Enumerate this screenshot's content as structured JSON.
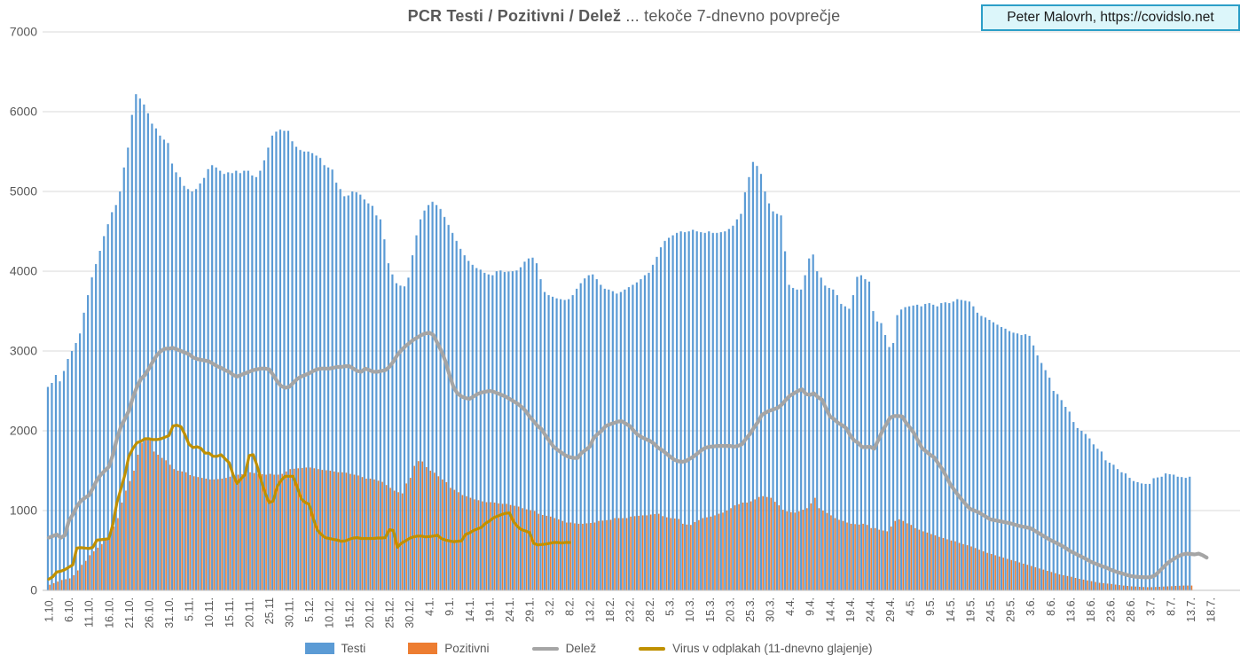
{
  "title": {
    "bold": "PCR Testi / Pozitivni / Delež",
    "regular": " ... tekoče 7-dnevno povprečje",
    "color": "#595959"
  },
  "credit_box": {
    "text": "Peter Malovrh, https://covidslo.net",
    "background": "#dcf6fa",
    "border_color": "#2b9ec7"
  },
  "axis": {
    "label_color": "#595959",
    "grid_color": "#d9d9d9",
    "axis_line_color": "#bfbfbf"
  },
  "chart_data": {
    "type": "bar",
    "title": "PCR Testi / Pozitivni / Delež ... tekoče 7-dnevno povprečje",
    "xlabel": "",
    "ylabel": "",
    "ylim": [
      0,
      7000
    ],
    "y_ticks": [
      0,
      1000,
      2000,
      3000,
      4000,
      5000,
      6000,
      7000
    ],
    "grid": true,
    "legend_position": "bottom",
    "x_tick_labels": [
      "1.10.",
      "6.10.",
      "11.10.",
      "16.10.",
      "21.10.",
      "26.10.",
      "31.10.",
      "5.11.",
      "10.11.",
      "15.11.",
      "20.11.",
      "25.11",
      "30.11.",
      "5.12.",
      "10.12.",
      "15.12.",
      "20.12.",
      "25.12.",
      "30.12.",
      "4.1.",
      "9.1.",
      "14.1.",
      "19.1.",
      "24.1.",
      "29.1.",
      "3.2.",
      "8.2.",
      "13.2.",
      "18.2.",
      "23.2.",
      "28.2.",
      "5.3.",
      "10.3.",
      "15.3.",
      "20.3.",
      "25.3.",
      "30.3.",
      "4.4.",
      "9.4.",
      "14.4.",
      "19.4.",
      "24.4.",
      "29.4.",
      "4.5.",
      "9.5.",
      "14.5.",
      "19.5.",
      "24.5.",
      "29.5.",
      "3.6.",
      "8.6.",
      "13.6.",
      "18.6.",
      "23.6.",
      "28.6.",
      "3.7.",
      "8.7.",
      "13.7.",
      "18.7."
    ],
    "x_tick_interval_days": 5,
    "start_date": "1.10.",
    "series": [
      {
        "name": "Testi",
        "type": "bar",
        "color": "#5b9bd5",
        "start_day": 0,
        "values": [
          2550,
          2600,
          2700,
          2620,
          2750,
          2900,
          3000,
          3100,
          3220,
          3480,
          3700,
          3925,
          4090,
          4256,
          4440,
          4590,
          4740,
          4830,
          5000,
          5300,
          5550,
          5960,
          6220,
          6164,
          6090,
          5980,
          5850,
          5790,
          5700,
          5650,
          5608,
          5350,
          5240,
          5180,
          5070,
          5030,
          5000,
          5030,
          5100,
          5170,
          5280,
          5330,
          5300,
          5260,
          5220,
          5240,
          5230,
          5260,
          5230,
          5260,
          5260,
          5200,
          5180,
          5260,
          5390,
          5550,
          5700,
          5750,
          5775,
          5760,
          5760,
          5630,
          5560,
          5520,
          5500,
          5500,
          5480,
          5450,
          5420,
          5330,
          5300,
          5275,
          5110,
          5030,
          4940,
          4950,
          5000,
          4990,
          4960,
          4900,
          4850,
          4820,
          4700,
          4650,
          4400,
          4100,
          3960,
          3850,
          3820,
          3810,
          3920,
          4200,
          4450,
          4650,
          4760,
          4830,
          4870,
          4830,
          4780,
          4680,
          4580,
          4480,
          4380,
          4280,
          4200,
          4130,
          4080,
          4040,
          4020,
          3980,
          3960,
          3950,
          4000,
          4010,
          3990,
          3995,
          4000,
          4010,
          4050,
          4120,
          4160,
          4170,
          4100,
          3900,
          3740,
          3700,
          3680,
          3660,
          3650,
          3640,
          3650,
          3700,
          3780,
          3850,
          3910,
          3950,
          3960,
          3900,
          3830,
          3780,
          3770,
          3750,
          3720,
          3740,
          3770,
          3800,
          3830,
          3860,
          3900,
          3950,
          3980,
          4080,
          4180,
          4300,
          4380,
          4420,
          4450,
          4480,
          4500,
          4490,
          4500,
          4520,
          4500,
          4490,
          4480,
          4500,
          4480,
          4480,
          4490,
          4500,
          4530,
          4570,
          4650,
          4720,
          4990,
          5180,
          5370,
          5320,
          5220,
          5000,
          4850,
          4750,
          4720,
          4700,
          4250,
          3830,
          3790,
          3770,
          3770,
          3950,
          4160,
          4210,
          4000,
          3920,
          3820,
          3790,
          3770,
          3700,
          3590,
          3560,
          3530,
          3700,
          3930,
          3950,
          3900,
          3870,
          3500,
          3370,
          3350,
          3200,
          3050,
          3100,
          3450,
          3520,
          3550,
          3560,
          3570,
          3580,
          3560,
          3590,
          3600,
          3580,
          3560,
          3600,
          3610,
          3600,
          3620,
          3650,
          3640,
          3630,
          3620,
          3560,
          3480,
          3440,
          3420,
          3390,
          3360,
          3330,
          3300,
          3280,
          3250,
          3230,
          3220,
          3200,
          3210,
          3190,
          3070,
          2945,
          2850,
          2760,
          2665,
          2500,
          2460,
          2385,
          2300,
          2240,
          2110,
          2035,
          2000,
          1960,
          1905,
          1830,
          1775,
          1740,
          1630,
          1600,
          1575,
          1520,
          1480,
          1465,
          1410,
          1370,
          1355,
          1340,
          1335,
          1335,
          1405,
          1415,
          1425,
          1465,
          1455,
          1450,
          1425,
          1420,
          1410,
          1425
        ]
      },
      {
        "name": "Pozitivni",
        "type": "bar",
        "color": "#ed7d31",
        "start_day": 0,
        "values": [
          70,
          90,
          110,
          130,
          140,
          150,
          190,
          250,
          320,
          370,
          440,
          490,
          535,
          580,
          640,
          700,
          800,
          905,
          1100,
          1250,
          1370,
          1500,
          1700,
          1850,
          1905,
          1880,
          1740,
          1700,
          1660,
          1630,
          1575,
          1520,
          1500,
          1490,
          1480,
          1445,
          1430,
          1420,
          1410,
          1400,
          1390,
          1390,
          1395,
          1400,
          1410,
          1425,
          1440,
          1450,
          1455,
          1460,
          1480,
          1470,
          1460,
          1455,
          1450,
          1460,
          1450,
          1450,
          1460,
          1490,
          1520,
          1525,
          1530,
          1535,
          1540,
          1540,
          1530,
          1520,
          1510,
          1505,
          1500,
          1490,
          1480,
          1480,
          1475,
          1460,
          1450,
          1440,
          1420,
          1400,
          1400,
          1390,
          1375,
          1360,
          1320,
          1285,
          1250,
          1230,
          1215,
          1340,
          1410,
          1560,
          1620,
          1615,
          1545,
          1500,
          1475,
          1430,
          1390,
          1355,
          1285,
          1260,
          1230,
          1195,
          1180,
          1160,
          1140,
          1130,
          1115,
          1105,
          1105,
          1100,
          1090,
          1085,
          1085,
          1070,
          1060,
          1050,
          1030,
          1015,
          1005,
          995,
          960,
          945,
          935,
          925,
          905,
          890,
          870,
          850,
          850,
          840,
          835,
          835,
          840,
          845,
          850,
          870,
          875,
          880,
          885,
          905,
          905,
          905,
          905,
          925,
          930,
          935,
          940,
          940,
          950,
          955,
          960,
          930,
          915,
          905,
          900,
          895,
          835,
          825,
          820,
          855,
          880,
          905,
          915,
          925,
          940,
          960,
          975,
          1000,
          1030,
          1065,
          1080,
          1100,
          1100,
          1115,
          1140,
          1170,
          1180,
          1170,
          1160,
          1110,
          1065,
          1010,
          990,
          980,
          975,
          990,
          1010,
          1030,
          1090,
          1160,
          1030,
          1000,
          970,
          940,
          905,
          885,
          870,
          850,
          835,
          830,
          825,
          835,
          820,
          780,
          780,
          760,
          750,
          740,
          800,
          870,
          890,
          870,
          840,
          820,
          780,
          760,
          740,
          725,
          705,
          690,
          670,
          655,
          640,
          625,
          615,
          595,
          580,
          565,
          550,
          530,
          510,
          490,
          470,
          455,
          440,
          425,
          410,
          395,
          380,
          365,
          350,
          335,
          320,
          305,
          290,
          275,
          260,
          245,
          230,
          215,
          200,
          190,
          180,
          170,
          155,
          145,
          135,
          125,
          115,
          105,
          95,
          90,
          85,
          80,
          72,
          65,
          60,
          55,
          50,
          48,
          45,
          42,
          40,
          40,
          42,
          45,
          48,
          50,
          52,
          55,
          58,
          60,
          60,
          60
        ]
      },
      {
        "name": "Delež",
        "type": "line",
        "color": "#a5a5a5",
        "start_day": 0,
        "values": [
          660,
          680,
          700,
          660,
          690,
          870,
          950,
          1050,
          1120,
          1160,
          1190,
          1280,
          1380,
          1450,
          1500,
          1550,
          1700,
          1900,
          2050,
          2150,
          2250,
          2420,
          2550,
          2650,
          2700,
          2780,
          2870,
          2950,
          3000,
          3030,
          3030,
          3040,
          3020,
          3000,
          2980,
          2960,
          2920,
          2900,
          2890,
          2880,
          2870,
          2840,
          2810,
          2790,
          2760,
          2740,
          2700,
          2680,
          2700,
          2720,
          2740,
          2760,
          2770,
          2780,
          2780,
          2770,
          2700,
          2620,
          2560,
          2540,
          2550,
          2600,
          2650,
          2680,
          2700,
          2720,
          2750,
          2770,
          2780,
          2780,
          2780,
          2790,
          2800,
          2800,
          2810,
          2810,
          2780,
          2750,
          2740,
          2780,
          2760,
          2740,
          2740,
          2750,
          2760,
          2800,
          2870,
          2950,
          3010,
          3060,
          3100,
          3140,
          3170,
          3200,
          3220,
          3230,
          3200,
          3100,
          3000,
          2870,
          2700,
          2550,
          2470,
          2430,
          2410,
          2400,
          2430,
          2460,
          2480,
          2490,
          2500,
          2490,
          2470,
          2450,
          2430,
          2400,
          2370,
          2340,
          2300,
          2250,
          2180,
          2120,
          2060,
          2020,
          1940,
          1870,
          1800,
          1760,
          1725,
          1690,
          1670,
          1660,
          1660,
          1725,
          1760,
          1800,
          1910,
          1960,
          2000,
          2060,
          2080,
          2095,
          2115,
          2120,
          2090,
          2060,
          2000,
          1950,
          1920,
          1895,
          1875,
          1840,
          1790,
          1760,
          1720,
          1680,
          1640,
          1620,
          1610,
          1620,
          1650,
          1680,
          1720,
          1760,
          1790,
          1800,
          1805,
          1810,
          1810,
          1810,
          1810,
          1800,
          1810,
          1830,
          1900,
          1960,
          2040,
          2110,
          2200,
          2230,
          2255,
          2270,
          2290,
          2330,
          2390,
          2440,
          2470,
          2500,
          2520,
          2460,
          2450,
          2470,
          2420,
          2390,
          2280,
          2180,
          2145,
          2100,
          2070,
          2035,
          1945,
          1880,
          1850,
          1795,
          1795,
          1800,
          1775,
          1880,
          1990,
          2080,
          2165,
          2185,
          2185,
          2180,
          2100,
          2035,
          1965,
          1870,
          1780,
          1740,
          1700,
          1665,
          1590,
          1520,
          1430,
          1330,
          1260,
          1190,
          1130,
          1070,
          1020,
          1000,
          980,
          950,
          920,
          890,
          880,
          870,
          860,
          850,
          840,
          825,
          810,
          800,
          790,
          780,
          750,
          720,
          690,
          660,
          630,
          605,
          580,
          555,
          525,
          490,
          465,
          440,
          415,
          390,
          360,
          340,
          320,
          300,
          285,
          260,
          240,
          225,
          210,
          195,
          180,
          172,
          168,
          165,
          163,
          165,
          185,
          230,
          280,
          330,
          370,
          400,
          430,
          450,
          460,
          455,
          450,
          460,
          440,
          410
        ]
      },
      {
        "name": "Virus v odplakah (11-dnevno glajenje)",
        "type": "line",
        "color": "#bf9000",
        "start_day": 0,
        "values": [
          140,
          170,
          230,
          240,
          260,
          290,
          320,
          530,
          535,
          530,
          525,
          540,
          630,
          635,
          640,
          650,
          830,
          1100,
          1270,
          1450,
          1680,
          1780,
          1850,
          1870,
          1900,
          1900,
          1890,
          1890,
          1900,
          1920,
          1940,
          2060,
          2070,
          2050,
          1950,
          1830,
          1790,
          1800,
          1780,
          1720,
          1720,
          1680,
          1680,
          1700,
          1650,
          1600,
          1450,
          1340,
          1400,
          1450,
          1690,
          1700,
          1560,
          1380,
          1220,
          1100,
          1120,
          1300,
          1380,
          1430,
          1430,
          1430,
          1290,
          1150,
          1100,
          1080,
          900,
          760,
          700,
          660,
          650,
          640,
          630,
          615,
          620,
          640,
          655,
          660,
          650,
          650,
          650,
          650,
          655,
          655,
          660,
          760,
          750,
          540,
          590,
          620,
          650,
          670,
          680,
          680,
          670,
          675,
          680,
          690,
          650,
          630,
          620,
          610,
          615,
          620,
          700,
          720,
          750,
          770,
          790,
          840,
          870,
          910,
          930,
          950,
          965,
          970,
          860,
          800,
          760,
          745,
          725,
          590,
          570,
          575,
          580,
          590,
          600,
          600,
          595,
          600,
          600
        ]
      }
    ]
  }
}
